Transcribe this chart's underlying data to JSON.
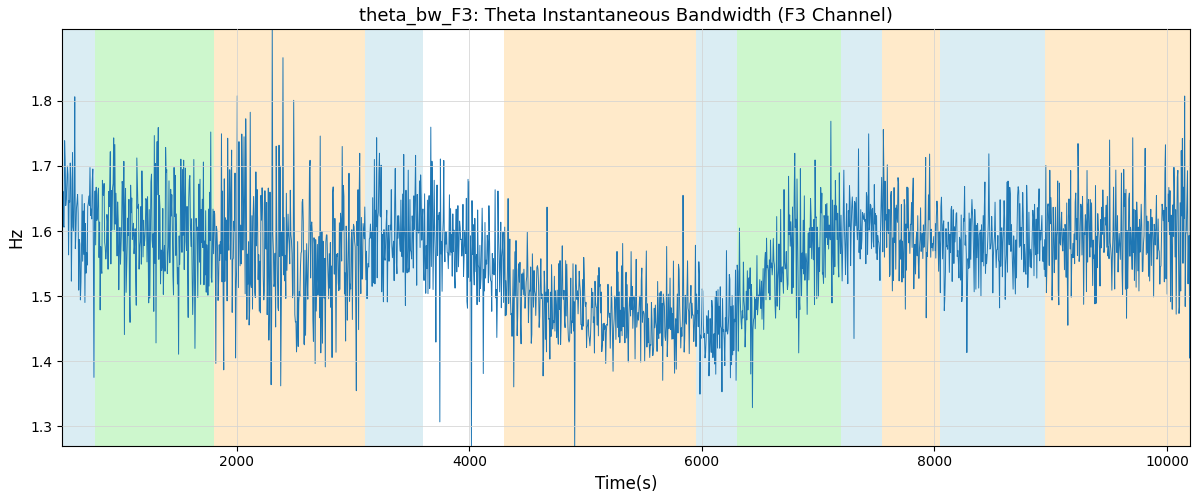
{
  "title": "theta_bw_F3: Theta Instantaneous Bandwidth (F3 Channel)",
  "xlabel": "Time(s)",
  "ylabel": "Hz",
  "xlim": [
    500,
    10200
  ],
  "ylim": [
    1.27,
    1.91
  ],
  "line_color": "#1f77b4",
  "line_width": 0.7,
  "xticks": [
    2000,
    4000,
    6000,
    8000,
    10000
  ],
  "yticks": [
    1.3,
    1.4,
    1.5,
    1.6,
    1.7,
    1.8
  ],
  "background_color": "#ffffff",
  "bands": [
    {
      "xmin": 500,
      "xmax": 780,
      "color": "#add8e6",
      "alpha": 0.45
    },
    {
      "xmin": 780,
      "xmax": 1800,
      "color": "#90ee90",
      "alpha": 0.45
    },
    {
      "xmin": 1800,
      "xmax": 3100,
      "color": "#ffd9a0",
      "alpha": 0.55
    },
    {
      "xmin": 3100,
      "xmax": 3600,
      "color": "#add8e6",
      "alpha": 0.45
    },
    {
      "xmin": 3600,
      "xmax": 4300,
      "color": "#ffffff",
      "alpha": 0.0
    },
    {
      "xmin": 4300,
      "xmax": 5950,
      "color": "#ffd9a0",
      "alpha": 0.55
    },
    {
      "xmin": 5950,
      "xmax": 6300,
      "color": "#add8e6",
      "alpha": 0.45
    },
    {
      "xmin": 6300,
      "xmax": 7200,
      "color": "#90ee90",
      "alpha": 0.45
    },
    {
      "xmin": 7200,
      "xmax": 7550,
      "color": "#add8e6",
      "alpha": 0.45
    },
    {
      "xmin": 7550,
      "xmax": 8050,
      "color": "#ffd9a0",
      "alpha": 0.55
    },
    {
      "xmin": 8050,
      "xmax": 8950,
      "color": "#add8e6",
      "alpha": 0.45
    },
    {
      "xmin": 8950,
      "xmax": 10200,
      "color": "#ffd9a0",
      "alpha": 0.55
    }
  ],
  "seed": 12345,
  "n_points": 2000,
  "x_start": 500,
  "x_end": 10200
}
